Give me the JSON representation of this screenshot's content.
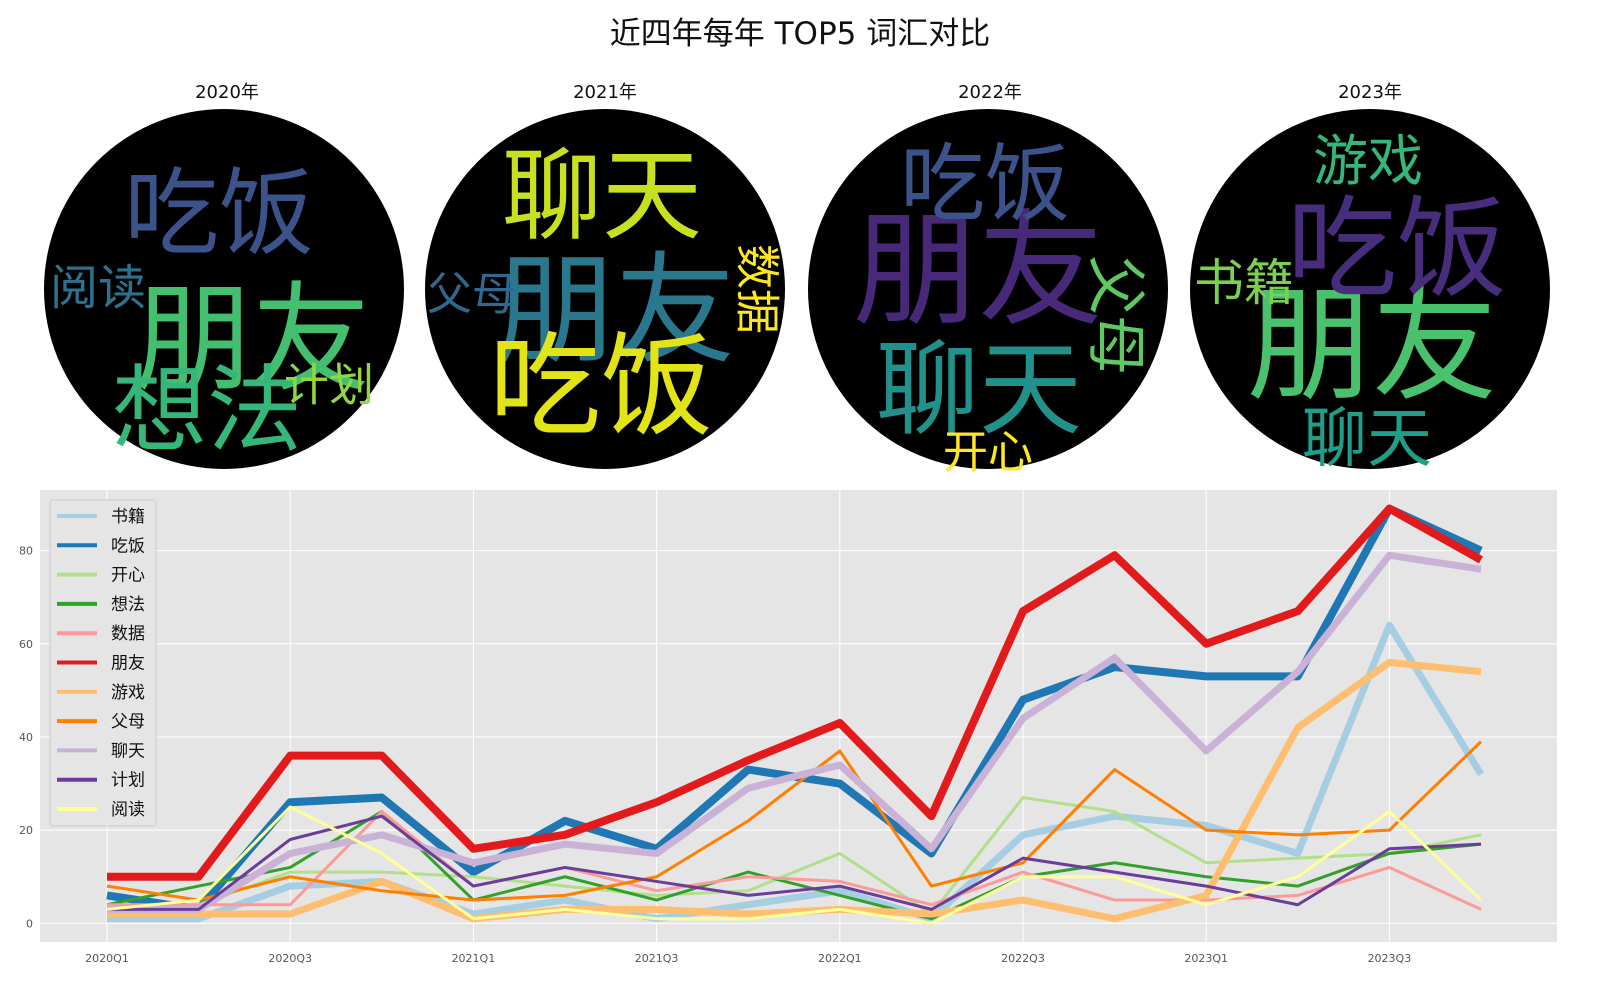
{
  "title": "近四年每年 TOP5 词汇对比",
  "chart_data": [
    {
      "type": "wordcloud",
      "title": "2020年",
      "words": [
        {
          "text": "朋友",
          "color": "#44bf70"
        },
        {
          "text": "吃饭",
          "color": "#3b528b"
        },
        {
          "text": "想法",
          "color": "#35b779"
        },
        {
          "text": "阅读",
          "color": "#2c728e"
        },
        {
          "text": "计划",
          "color": "#90d743"
        }
      ]
    },
    {
      "type": "wordcloud",
      "title": "2021年",
      "words": [
        {
          "text": "朋友",
          "color": "#2a788e"
        },
        {
          "text": "吃饭",
          "color": "#e2e418"
        },
        {
          "text": "聊天",
          "color": "#c8e020"
        },
        {
          "text": "父母",
          "color": "#31688e"
        },
        {
          "text": "数据",
          "color": "#fde725"
        }
      ]
    },
    {
      "type": "wordcloud",
      "title": "2022年",
      "words": [
        {
          "text": "朋友",
          "color": "#482878"
        },
        {
          "text": "吃饭",
          "color": "#3b528b"
        },
        {
          "text": "聊天",
          "color": "#21918c"
        },
        {
          "text": "父母",
          "color": "#5ec962"
        },
        {
          "text": "开心",
          "color": "#fde725"
        }
      ]
    },
    {
      "type": "wordcloud",
      "title": "2023年",
      "words": [
        {
          "text": "朋友",
          "color": "#4ac16d"
        },
        {
          "text": "吃饭",
          "color": "#472d7b"
        },
        {
          "text": "游戏",
          "color": "#35b779"
        },
        {
          "text": "书籍",
          "color": "#7ad151"
        },
        {
          "text": "聊天",
          "color": "#1f9e89"
        }
      ]
    },
    {
      "type": "line",
      "x": [
        "2020Q1",
        "2020Q2",
        "2020Q3",
        "2020Q4",
        "2021Q1",
        "2021Q2",
        "2021Q3",
        "2021Q4",
        "2022Q1",
        "2022Q2",
        "2022Q3",
        "2022Q4",
        "2023Q1",
        "2023Q2",
        "2023Q3",
        "2023Q4"
      ],
      "xticks": [
        "2020Q1",
        "2020Q3",
        "2021Q1",
        "2021Q3",
        "2022Q1",
        "2022Q3",
        "2023Q1",
        "2023Q3"
      ],
      "yticks": [
        0,
        20,
        40,
        60,
        80
      ],
      "ylim": [
        -4,
        93
      ],
      "grid": true,
      "legend_position": "upper-left",
      "series": [
        {
          "name": "书籍",
          "color": "#a6cee3",
          "values": [
            1,
            1,
            8,
            9,
            2,
            5,
            1,
            4,
            7,
            1,
            19,
            23,
            21,
            15,
            64,
            32
          ]
        },
        {
          "name": "吃饭",
          "color": "#1f78b4",
          "values": [
            6,
            3,
            26,
            27,
            11,
            22,
            16,
            33,
            30,
            15,
            48,
            55,
            53,
            53,
            89,
            80
          ]
        },
        {
          "name": "开心",
          "color": "#b2df8a",
          "values": [
            3,
            4,
            11,
            11,
            10,
            8,
            6,
            7,
            15,
            2,
            27,
            24,
            13,
            14,
            15,
            19
          ]
        },
        {
          "name": "想法",
          "color": "#33a02c",
          "values": [
            4,
            8,
            12,
            24,
            5,
            10,
            5,
            11,
            6,
            1,
            10,
            13,
            10,
            8,
            15,
            17
          ]
        },
        {
          "name": "数据",
          "color": "#fb9a99",
          "values": [
            4,
            4,
            4,
            24,
            8,
            12,
            7,
            10,
            9,
            4,
            11,
            5,
            5,
            6,
            12,
            3
          ]
        },
        {
          "name": "朋友",
          "color": "#e31a1c",
          "values": [
            10,
            10,
            36,
            36,
            16,
            19,
            26,
            35,
            43,
            23,
            67,
            79,
            60,
            67,
            89,
            78
          ]
        },
        {
          "name": "游戏",
          "color": "#fdbf6f",
          "values": [
            2,
            2,
            2,
            9,
            1,
            3,
            3,
            2,
            3,
            2,
            5,
            1,
            6,
            42,
            56,
            54
          ]
        },
        {
          "name": "父母",
          "color": "#ff7f00",
          "values": [
            8,
            5,
            10,
            7,
            5,
            6,
            10,
            22,
            37,
            8,
            13,
            33,
            20,
            19,
            20,
            39
          ]
        },
        {
          "name": "聊天",
          "color": "#cab2d6",
          "values": [
            3,
            3,
            15,
            19,
            13,
            17,
            15,
            29,
            34,
            16,
            44,
            57,
            37,
            54,
            79,
            76
          ]
        },
        {
          "name": "计划",
          "color": "#6a3d9a",
          "values": [
            3,
            3,
            18,
            23,
            8,
            12,
            9,
            6,
            8,
            3,
            14,
            11,
            8,
            4,
            16,
            17
          ]
        },
        {
          "name": "阅读",
          "color": "#ffff99",
          "values": [
            3,
            5,
            25,
            15,
            1,
            3,
            1,
            1,
            3,
            0,
            10,
            10,
            4,
            10,
            24,
            5
          ]
        }
      ]
    }
  ]
}
